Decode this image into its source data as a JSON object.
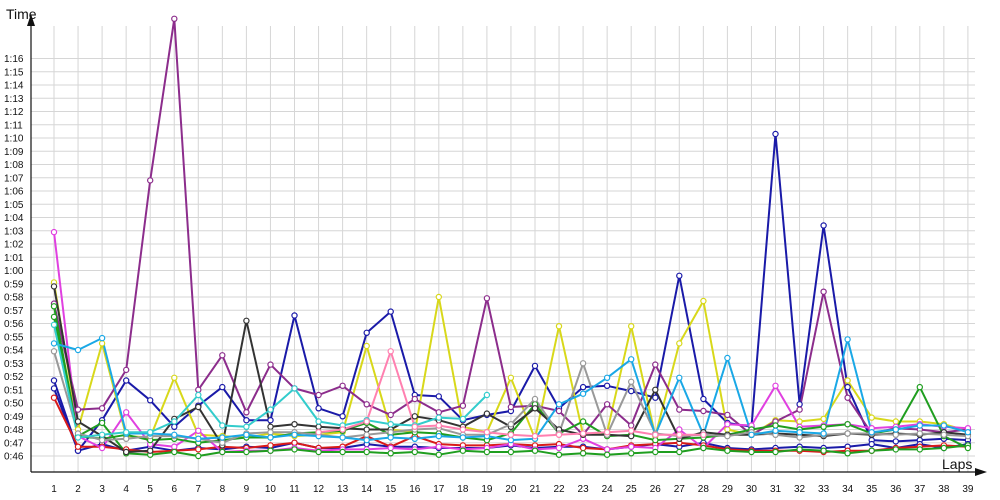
{
  "chart_data": {
    "type": "line",
    "xlabel": "Laps",
    "ylabel": "Time",
    "x_ticks": [
      "1",
      "2",
      "3",
      "4",
      "5",
      "6",
      "7",
      "8",
      "9",
      "10",
      "11",
      "12",
      "13",
      "14",
      "15",
      "16",
      "17",
      "18",
      "19",
      "20",
      "21",
      "22",
      "23",
      "24",
      "25",
      "26",
      "27",
      "28",
      "29",
      "30",
      "31",
      "32",
      "33",
      "34",
      "35",
      "36",
      "37",
      "38",
      "39"
    ],
    "y_ticks": [
      "0:46",
      "0:47",
      "0:48",
      "0:49",
      "0:50",
      "0:51",
      "0:52",
      "0:53",
      "0:54",
      "0:55",
      "0:56",
      "0:57",
      "0:58",
      "0:59",
      "1:00",
      "1:01",
      "1:02",
      "1:03",
      "1:04",
      "1:05",
      "1:06",
      "1:07",
      "1:08",
      "1:09",
      "1:10",
      "1:11",
      "1:12",
      "1:13",
      "1:14",
      "1:15",
      "1:16"
    ],
    "y_unit": "seconds",
    "ylim": [
      45.4,
      79
    ],
    "grid": true,
    "series": [
      {
        "color": "#1a1aa8",
        "x": [
          1,
          2,
          3,
          4,
          5,
          6,
          7,
          8,
          9,
          10,
          11,
          12,
          13,
          14,
          15,
          16,
          17,
          18,
          19,
          20,
          21,
          22,
          23,
          24,
          25,
          26,
          27,
          28,
          29,
          30,
          31,
          32,
          33,
          34,
          35,
          36,
          37,
          38,
          39
        ],
        "values": [
          51.7,
          46.4,
          48.7,
          51.7,
          50.2,
          48.2,
          49.8,
          51.2,
          48.7,
          48.7,
          56.6,
          49.6,
          49.0,
          55.3,
          56.9,
          50.6,
          50.5,
          48.7,
          49.1,
          49.4,
          52.8,
          49.6,
          51.2,
          51.3,
          50.9,
          50.4,
          59.6,
          50.3,
          48.5,
          48.2,
          70.3,
          49.9,
          63.4,
          51.2,
          47.2,
          47.1,
          47.2,
          47.3,
          47.2
        ]
      },
      {
        "color": "#1a1aa8",
        "x": [
          1,
          2,
          3,
          4,
          5,
          6,
          7,
          8,
          9,
          10,
          11,
          12,
          13,
          14,
          15,
          16,
          17,
          18,
          19,
          20,
          21,
          22,
          23,
          24,
          25,
          26,
          27,
          28,
          29,
          30,
          31,
          32,
          33,
          34,
          35,
          36,
          37,
          38,
          39
        ],
        "values": [
          51.1,
          46.4,
          46.9,
          46.4,
          46.7,
          46.4,
          46.6,
          46.5,
          46.7,
          46.6,
          47.0,
          46.6,
          46.6,
          46.9,
          46.7,
          46.7,
          46.6,
          46.6,
          46.6,
          46.8,
          46.6,
          46.7,
          46.7,
          46.5,
          46.7,
          46.9,
          46.7,
          47.0,
          46.6,
          46.5,
          46.6,
          46.7,
          46.6,
          46.7,
          46.9,
          46.6,
          46.9,
          46.6,
          46.9
        ]
      },
      {
        "color": "#d91a1a",
        "x": [
          1,
          2,
          3,
          4,
          5,
          6,
          7,
          8,
          9,
          10,
          11,
          12,
          13,
          14,
          15,
          16,
          17,
          18,
          19,
          20,
          21,
          22,
          23,
          24,
          25,
          26,
          27,
          28,
          29,
          30,
          31,
          32,
          33,
          34,
          35,
          36,
          37,
          38,
          39
        ],
        "values": [
          50.4,
          46.7,
          46.7,
          46.5,
          46.3,
          46.4,
          46.5,
          46.7,
          46.6,
          46.8,
          47.0,
          46.6,
          46.7,
          47.5,
          46.7,
          47.5,
          46.9,
          46.8,
          46.8,
          46.9,
          46.8,
          46.9,
          46.6,
          46.5,
          46.8,
          46.9,
          47.0,
          46.8,
          46.5,
          46.4,
          46.4,
          46.4,
          46.3,
          46.4,
          46.4,
          46.6,
          46.7,
          46.8,
          46.7
        ]
      },
      {
        "color": "#d8d81a",
        "x": [
          1,
          2,
          3,
          4,
          5,
          6,
          7,
          8,
          9,
          10,
          11,
          12,
          13,
          14,
          15,
          16,
          17,
          18,
          19,
          20,
          21,
          22,
          23,
          24,
          25,
          26,
          27,
          28,
          29,
          30,
          31,
          32,
          33,
          34,
          35,
          36,
          37,
          38,
          39
        ],
        "values": [
          59.1,
          48.0,
          54.5,
          47.5,
          47.4,
          51.9,
          47.6,
          47.5,
          47.4,
          47.7,
          47.5,
          47.6,
          47.8,
          54.3,
          48.0,
          47.8,
          58.0,
          48.2,
          47.8,
          51.9,
          47.3,
          55.8,
          47.6,
          47.8,
          55.8,
          47.5,
          54.5,
          57.7,
          48.0,
          47.6,
          48.7,
          48.6,
          48.8,
          51.7,
          48.9,
          48.6,
          48.6,
          48.4,
          47.9
        ]
      },
      {
        "color": "#8c2d8c",
        "x": [
          1,
          2,
          3,
          4,
          5,
          6,
          7,
          8,
          9,
          10,
          11,
          12,
          13,
          14,
          15,
          16,
          17,
          18,
          19,
          20,
          21,
          22,
          23,
          24,
          25,
          26,
          27,
          28,
          29,
          30,
          31,
          32,
          33,
          34,
          35,
          36,
          37,
          38,
          39
        ],
        "values": [
          57.5,
          49.5,
          49.6,
          52.5,
          66.8,
          79,
          51.0,
          53.6,
          49.3,
          52.9,
          51.1,
          50.6,
          51.3,
          49.9,
          49.1,
          50.3,
          49.3,
          49.8,
          57.9,
          49.7,
          49.8,
          49.4,
          47.6,
          49.9,
          48.3,
          52.9,
          49.5,
          49.4,
          49.1,
          47.6,
          48.6,
          49.5,
          58.4,
          50.4,
          47.7,
          48.1,
          48.0,
          47.8,
          48.0
        ]
      },
      {
        "color": "#e040e0",
        "x": [
          1,
          2,
          3,
          4,
          5,
          6,
          7,
          8,
          9,
          10,
          11,
          12,
          13,
          14,
          15,
          16,
          17,
          18,
          19,
          20,
          21,
          22,
          23,
          24,
          25,
          26,
          27,
          28,
          29,
          30,
          31,
          32,
          33,
          34,
          35,
          36,
          37,
          38,
          39
        ],
        "values": [
          62.9,
          47.5,
          46.6,
          49.3,
          46.9,
          46.7,
          47.9,
          46.3,
          46.4,
          46.4,
          46.6,
          46.4,
          46.5,
          46.5,
          46.6,
          46.5,
          46.7,
          46.5,
          46.6,
          46.9,
          46.5,
          46.6,
          47.3,
          46.5,
          46.7,
          46.6,
          48.0,
          46.6,
          48.4,
          48.3,
          51.3,
          48.2,
          48.3,
          48.4,
          48.1,
          48.2,
          48.4,
          48.2,
          48.1
        ]
      },
      {
        "color": "#1f9e1f",
        "x": [
          1,
          2,
          3,
          4,
          5,
          6,
          7,
          8,
          9,
          10,
          11,
          12,
          13,
          14,
          15,
          16,
          17,
          18,
          19,
          20,
          21,
          22,
          23,
          24,
          25,
          26,
          27,
          28,
          29,
          30,
          31,
          32,
          33,
          34,
          35,
          36,
          37,
          38,
          39
        ],
        "values": [
          56.5,
          47.5,
          48.5,
          46.2,
          46.1,
          46.3,
          46.0,
          46.3,
          46.3,
          46.4,
          46.5,
          46.3,
          46.3,
          46.3,
          46.2,
          46.3,
          46.1,
          46.4,
          46.3,
          46.3,
          46.4,
          46.1,
          46.2,
          46.1,
          46.2,
          46.3,
          46.3,
          46.6,
          46.4,
          46.3,
          46.3,
          46.5,
          46.4,
          46.2,
          46.4,
          46.5,
          46.5,
          46.6,
          46.8
        ]
      },
      {
        "color": "#1f9e1f",
        "x": [
          1,
          2,
          3,
          4,
          5,
          6,
          7,
          8,
          9,
          10,
          11,
          12,
          13,
          14,
          15,
          16,
          17,
          18,
          19,
          20,
          21,
          22,
          23,
          24,
          25,
          26,
          27,
          28,
          29,
          30,
          31,
          32,
          33,
          34,
          35,
          36,
          37,
          38,
          39
        ],
        "values": [
          57.3,
          47.5,
          47.3,
          47.6,
          47.2,
          47.3,
          47.0,
          47.2,
          47.4,
          47.4,
          47.7,
          47.8,
          47.9,
          48.5,
          47.6,
          47.8,
          47.7,
          47.4,
          47.2,
          47.7,
          49.9,
          47.7,
          48.6,
          47.5,
          47.6,
          47.2,
          47.3,
          47.4,
          47.6,
          48.0,
          48.3,
          48.0,
          48.2,
          48.4,
          47.7,
          48.0,
          51.2,
          47.5,
          46.6
        ]
      },
      {
        "color": "#333333",
        "x": [
          1,
          2,
          3,
          4,
          5,
          6,
          7,
          8,
          9,
          10,
          11,
          12,
          13,
          14,
          15,
          16,
          17,
          18,
          19,
          20,
          21,
          22,
          23,
          24,
          25,
          26,
          27,
          28,
          29,
          30,
          31,
          32,
          33,
          34,
          35,
          36,
          37,
          38,
          39
        ],
        "values": [
          58.8,
          48.6,
          47.5,
          46.3,
          46.4,
          48.8,
          49.7,
          46.8,
          56.2,
          48.2,
          48.4,
          48.2,
          48.1,
          48.0,
          48.0,
          49.0,
          48.7,
          48.2,
          49.2,
          48.2,
          49.6,
          48.0,
          47.6,
          47.6,
          47.5,
          51.0,
          47.3,
          47.8,
          47.6,
          47.6,
          47.7,
          47.6,
          47.5,
          47.7,
          47.6,
          47.7,
          47.6,
          47.8,
          47.6
        ]
      },
      {
        "color": "#999999",
        "x": [
          1,
          2,
          3,
          4,
          5,
          6,
          7,
          8,
          9,
          10,
          11,
          12,
          13,
          14,
          15,
          16,
          17,
          18,
          19,
          20,
          21,
          22,
          23,
          24,
          25,
          26,
          27,
          28,
          29,
          30,
          31,
          32,
          33,
          34,
          35,
          36,
          37,
          38,
          39
        ],
        "values": [
          53.9,
          47.7,
          47.2,
          47.3,
          47.5,
          47.5,
          47.3,
          47.0,
          47.7,
          47.8,
          47.8,
          47.6,
          47.4,
          47.6,
          47.8,
          48.0,
          48.1,
          47.6,
          47.6,
          48.4,
          50.3,
          47.7,
          53.0,
          47.6,
          51.6,
          47.7,
          47.5,
          47.6,
          47.5,
          47.8,
          47.6,
          47.4,
          47.6,
          47.7,
          47.7,
          47.6,
          47.7,
          47.6,
          47.5
        ]
      },
      {
        "color": "#1aa8e6",
        "x": [
          1,
          2,
          3,
          4,
          5,
          6,
          7,
          8,
          9,
          10,
          11,
          12,
          13,
          14,
          15,
          16,
          17,
          18,
          19,
          20,
          21,
          22,
          23,
          24,
          25,
          26,
          27,
          28,
          29,
          30,
          31,
          32,
          33,
          34,
          35,
          36,
          37,
          38,
          39
        ],
        "values": [
          54.5,
          54.0,
          54.9,
          47.7,
          47.7,
          47.6,
          47.3,
          47.4,
          47.6,
          47.4,
          47.6,
          47.5,
          47.4,
          47.2,
          47.4,
          47.3,
          47.5,
          47.4,
          47.5,
          47.2,
          47.3,
          49.9,
          50.7,
          51.9,
          53.3,
          47.6,
          51.9,
          47.6,
          53.4,
          47.6,
          47.9,
          47.8,
          47.7,
          54.8,
          47.8,
          48.0,
          48.3,
          48.3,
          47.8
        ]
      },
      {
        "color": "#33cccc",
        "x": [
          1,
          2,
          3,
          4,
          5,
          6,
          7,
          8,
          9,
          10,
          11,
          12,
          13,
          14,
          15,
          16,
          17,
          18,
          19
        ],
        "values": [
          55.9,
          47.4,
          47.6,
          47.8,
          47.8,
          48.6,
          50.6,
          48.3,
          48.2,
          49.5,
          51.1,
          48.6,
          48.3,
          48.7,
          48.4,
          48.3,
          48.9,
          48.8,
          50.6
        ]
      },
      {
        "color": "#ff80b0",
        "x": [
          12,
          13,
          14,
          15,
          16,
          17,
          18,
          19,
          20,
          21,
          22,
          23,
          24,
          25,
          26,
          27,
          28
        ],
        "values": [
          47.8,
          48.0,
          48.6,
          53.9,
          48.2,
          48.3,
          48.0,
          47.8,
          47.6,
          47.5,
          47.6,
          47.7,
          47.8,
          47.9,
          47.6,
          47.6,
          47.6
        ]
      }
    ]
  }
}
